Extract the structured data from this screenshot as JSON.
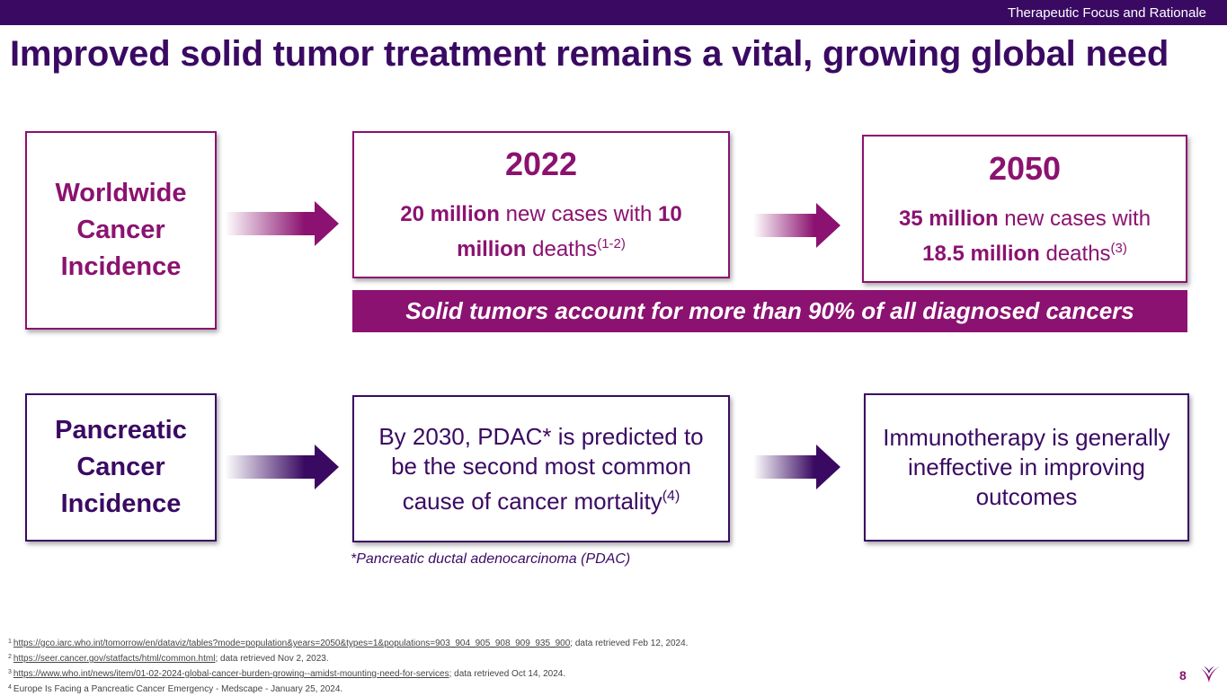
{
  "header": {
    "section": "Therapeutic Focus and Rationale"
  },
  "title": "Improved solid tumor treatment remains a vital, growing global need",
  "row1": {
    "label": [
      "Worldwide",
      "Cancer",
      "Incidence"
    ],
    "box2022": {
      "year": "2022",
      "bold1": "20 million",
      "text1": " new cases with ",
      "bold2": "10 million",
      "text2": " deaths",
      "sup": "(1-2)"
    },
    "box2050": {
      "year": "2050",
      "bold1": "35 million",
      "text1": " new cases with ",
      "bold2": "18.5 million",
      "text2": " deaths",
      "sup": "(3)"
    },
    "banner": "Solid tumors account for more than 90% of all diagnosed cancers"
  },
  "row2": {
    "label": [
      "Pancreatic",
      "Cancer",
      "Incidence"
    ],
    "box_pdac": {
      "text": "By 2030, PDAC* is predicted to be the second most common cause of cancer mortality",
      "sup": "(4)"
    },
    "box_immuno": {
      "text": "Immunotherapy is generally ineffective in improving outcomes"
    },
    "footnote": "*Pancreatic ductal adenocarcinoma (PDAC)"
  },
  "references": [
    {
      "num": "1",
      "link": "https://gco.iarc.who.int/tomorrow/en/dataviz/tables?mode=population&years=2050&types=1&populations=903_904_905_908_909_935_900",
      "suffix": "; data retrieved Feb 12, 2024."
    },
    {
      "num": "2",
      "link": "https://seer.cancer.gov/statfacts/html/common.html",
      "suffix": "; data retrieved Nov 2, 2023."
    },
    {
      "num": "3",
      "link": "https://www.who.int/news/item/01-02-2024-global-cancer-burden-growing--amidst-mounting-need-for-services",
      "suffix": "; data retrieved Oct 14, 2024."
    },
    {
      "num": "4",
      "link": "",
      "suffix": "Europe Is Facing a Pancreatic Cancer Emergency - Medscape - January 25, 2024."
    }
  ],
  "page_number": "8",
  "colors": {
    "purple": "#3a0a63",
    "magenta": "#8b1270"
  },
  "icons": {
    "arrow": "right-arrow-icon",
    "logo": "brand-logo-icon"
  }
}
